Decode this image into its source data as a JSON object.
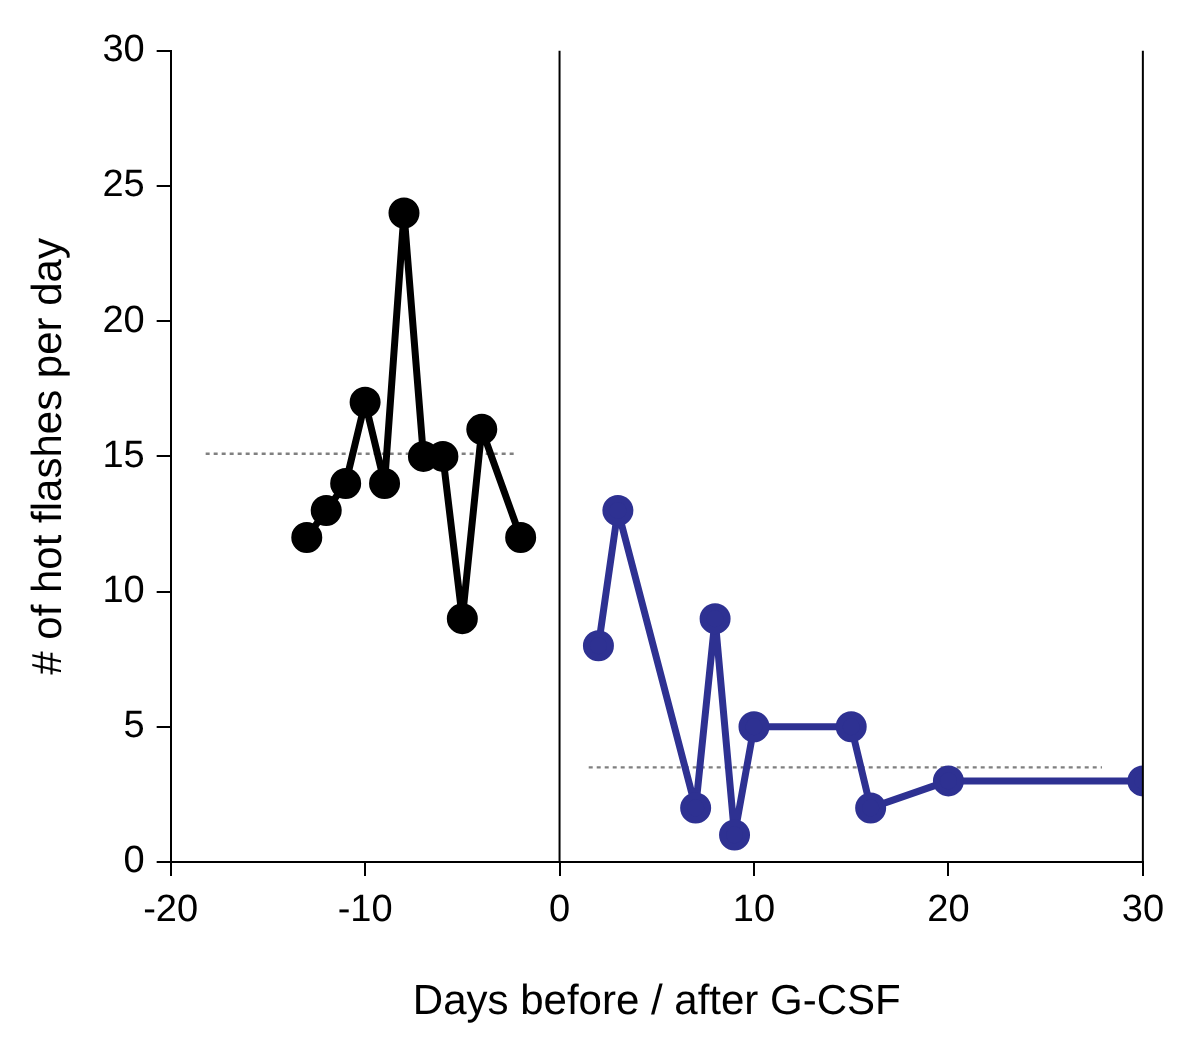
{
  "chart_data": {
    "type": "line",
    "xlabel": "Days before / after G-CSF",
    "ylabel": "# of hot flashes per day",
    "xlim": [
      -20,
      30
    ],
    "xticks": [
      -20,
      -10,
      0,
      10,
      20,
      30
    ],
    "ylim": [
      0,
      30
    ],
    "yticks": [
      0,
      5,
      10,
      15,
      20,
      25,
      30
    ],
    "grid": false,
    "legend": false,
    "marker": "circle",
    "series": [
      {
        "color": "#000000",
        "x": [
          -13,
          -12,
          -11,
          -10,
          -9,
          -8,
          -7,
          -6,
          -5,
          -4,
          -2
        ],
        "values": [
          12,
          13,
          14,
          17,
          14,
          24,
          15,
          15,
          9,
          16,
          12
        ]
      },
      {
        "color": "#2e3192",
        "x": [
          2,
          3,
          7,
          8,
          9,
          10,
          15,
          16,
          20,
          30
        ],
        "values": [
          8,
          13,
          2,
          9,
          1,
          5,
          5,
          2,
          3,
          3
        ]
      },
      {
        "type": "line",
        "color": "#808080",
        "marker": "none",
        "line_style": "dotted",
        "x": [
          -18.2,
          -2.3
        ],
        "values": [
          15.1,
          15.1
        ]
      },
      {
        "type": "line",
        "color": "#808080",
        "marker": "none",
        "line_style": "dotted",
        "x": [
          1.5,
          27.9
        ],
        "values": [
          3.5,
          3.5
        ]
      }
    ],
    "ref_lines": [
      {
        "axis": "x",
        "value": 0,
        "color": "#000000"
      }
    ]
  }
}
